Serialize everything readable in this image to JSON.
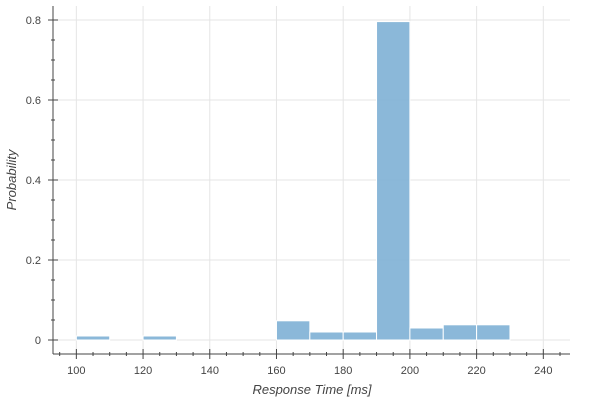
{
  "chart_data": {
    "type": "bar",
    "title": "",
    "xlabel": "Response Time [ms]",
    "ylabel": "Probability",
    "xlim": [
      93,
      248
    ],
    "ylim": [
      -0.035,
      0.835
    ],
    "x_ticks": [
      100,
      120,
      140,
      160,
      180,
      200,
      220,
      240
    ],
    "y_ticks": [
      0,
      0.2,
      0.4,
      0.6,
      0.8
    ],
    "x_tick_labels": [
      "100",
      "120",
      "140",
      "160",
      "180",
      "200",
      "220",
      "240"
    ],
    "y_tick_labels": [
      "0",
      "0.2",
      "0.4",
      "0.6",
      "0.8"
    ],
    "grid": true,
    "legend": "none",
    "bin_width": 10,
    "bins": [
      {
        "x0": 100,
        "x1": 110,
        "value": 0.01
      },
      {
        "x0": 110,
        "x1": 120,
        "value": 0.0
      },
      {
        "x0": 120,
        "x1": 130,
        "value": 0.01
      },
      {
        "x0": 130,
        "x1": 140,
        "value": 0.0
      },
      {
        "x0": 140,
        "x1": 150,
        "value": 0.0
      },
      {
        "x0": 150,
        "x1": 160,
        "value": 0.0
      },
      {
        "x0": 160,
        "x1": 170,
        "value": 0.048
      },
      {
        "x0": 170,
        "x1": 180,
        "value": 0.02
      },
      {
        "x0": 180,
        "x1": 190,
        "value": 0.02
      },
      {
        "x0": 190,
        "x1": 200,
        "value": 0.796
      },
      {
        "x0": 200,
        "x1": 210,
        "value": 0.03
      },
      {
        "x0": 210,
        "x1": 220,
        "value": 0.038
      },
      {
        "x0": 220,
        "x1": 230,
        "value": 0.038
      }
    ],
    "colors": {
      "bar_fill": "#7EB0D5",
      "bar_stroke": "#ffffff",
      "grid": "#e5e5e5",
      "axis": "#444444",
      "text": "#444444"
    }
  }
}
